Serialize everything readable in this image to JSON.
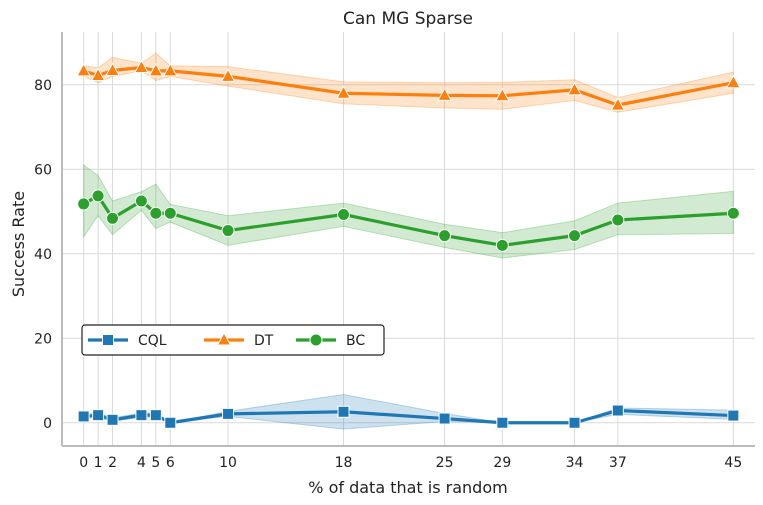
{
  "chart_data": {
    "type": "line",
    "title": "Can MG Sparse",
    "xlabel": "% of data that is random",
    "ylabel": "Success Rate",
    "x": [
      0,
      1,
      2,
      4,
      5,
      6,
      10,
      18,
      25,
      29,
      34,
      37,
      45
    ],
    "x_tick_labels": [
      "0",
      "1",
      "2",
      "4",
      "5",
      "6",
      "10",
      "18",
      "25",
      "29",
      "34",
      "37",
      "45"
    ],
    "y_ticks": [
      0,
      20,
      40,
      60,
      80
    ],
    "xlim": [
      -1.5,
      46.5
    ],
    "ylim": [
      -5.5,
      92.5
    ],
    "grid": true,
    "legend_position": "center-left",
    "series": [
      {
        "name": "CQL",
        "marker": "square",
        "color": "#1f77b4",
        "values": [
          1.5,
          1.8,
          0.7,
          1.8,
          1.8,
          0.0,
          2.1,
          2.6,
          1.0,
          0.0,
          0.0,
          2.9,
          1.7
        ],
        "lower": [
          1.0,
          1.3,
          0.3,
          1.3,
          1.3,
          0.0,
          1.5,
          -1.5,
          0.3,
          0.0,
          0.0,
          2.0,
          0.8
        ],
        "upper": [
          2.0,
          2.3,
          1.2,
          2.3,
          2.3,
          0.0,
          2.7,
          6.7,
          2.2,
          0.0,
          0.0,
          3.5,
          3.0
        ]
      },
      {
        "name": "DT",
        "marker": "triangle",
        "color": "#ff7f0e",
        "values": [
          83.3,
          82.2,
          83.4,
          84.1,
          83.3,
          83.3,
          82.0,
          78.0,
          77.5,
          77.4,
          78.8,
          75.2,
          80.5
        ],
        "lower": [
          82.0,
          80.5,
          82.0,
          83.3,
          81.0,
          82.0,
          79.7,
          75.5,
          74.5,
          74.2,
          76.3,
          73.5,
          78.0
        ],
        "upper": [
          84.5,
          84.0,
          86.5,
          85.1,
          87.5,
          84.5,
          84.3,
          80.7,
          80.5,
          80.6,
          81.2,
          77.0,
          83.0
        ]
      },
      {
        "name": "BC",
        "marker": "circle",
        "color": "#2ca02c",
        "values": [
          51.8,
          53.7,
          48.4,
          52.5,
          49.6,
          49.6,
          45.5,
          49.3,
          44.3,
          42.0,
          44.3,
          48.0,
          49.6
        ],
        "lower": [
          44.0,
          49.0,
          44.5,
          50.3,
          46.0,
          47.5,
          42.0,
          46.5,
          41.5,
          39.0,
          41.0,
          44.5,
          44.8
        ],
        "upper": [
          61.0,
          58.5,
          52.5,
          54.7,
          56.5,
          51.7,
          49.0,
          52.0,
          47.0,
          45.0,
          47.8,
          52.0,
          54.8
        ]
      }
    ]
  }
}
